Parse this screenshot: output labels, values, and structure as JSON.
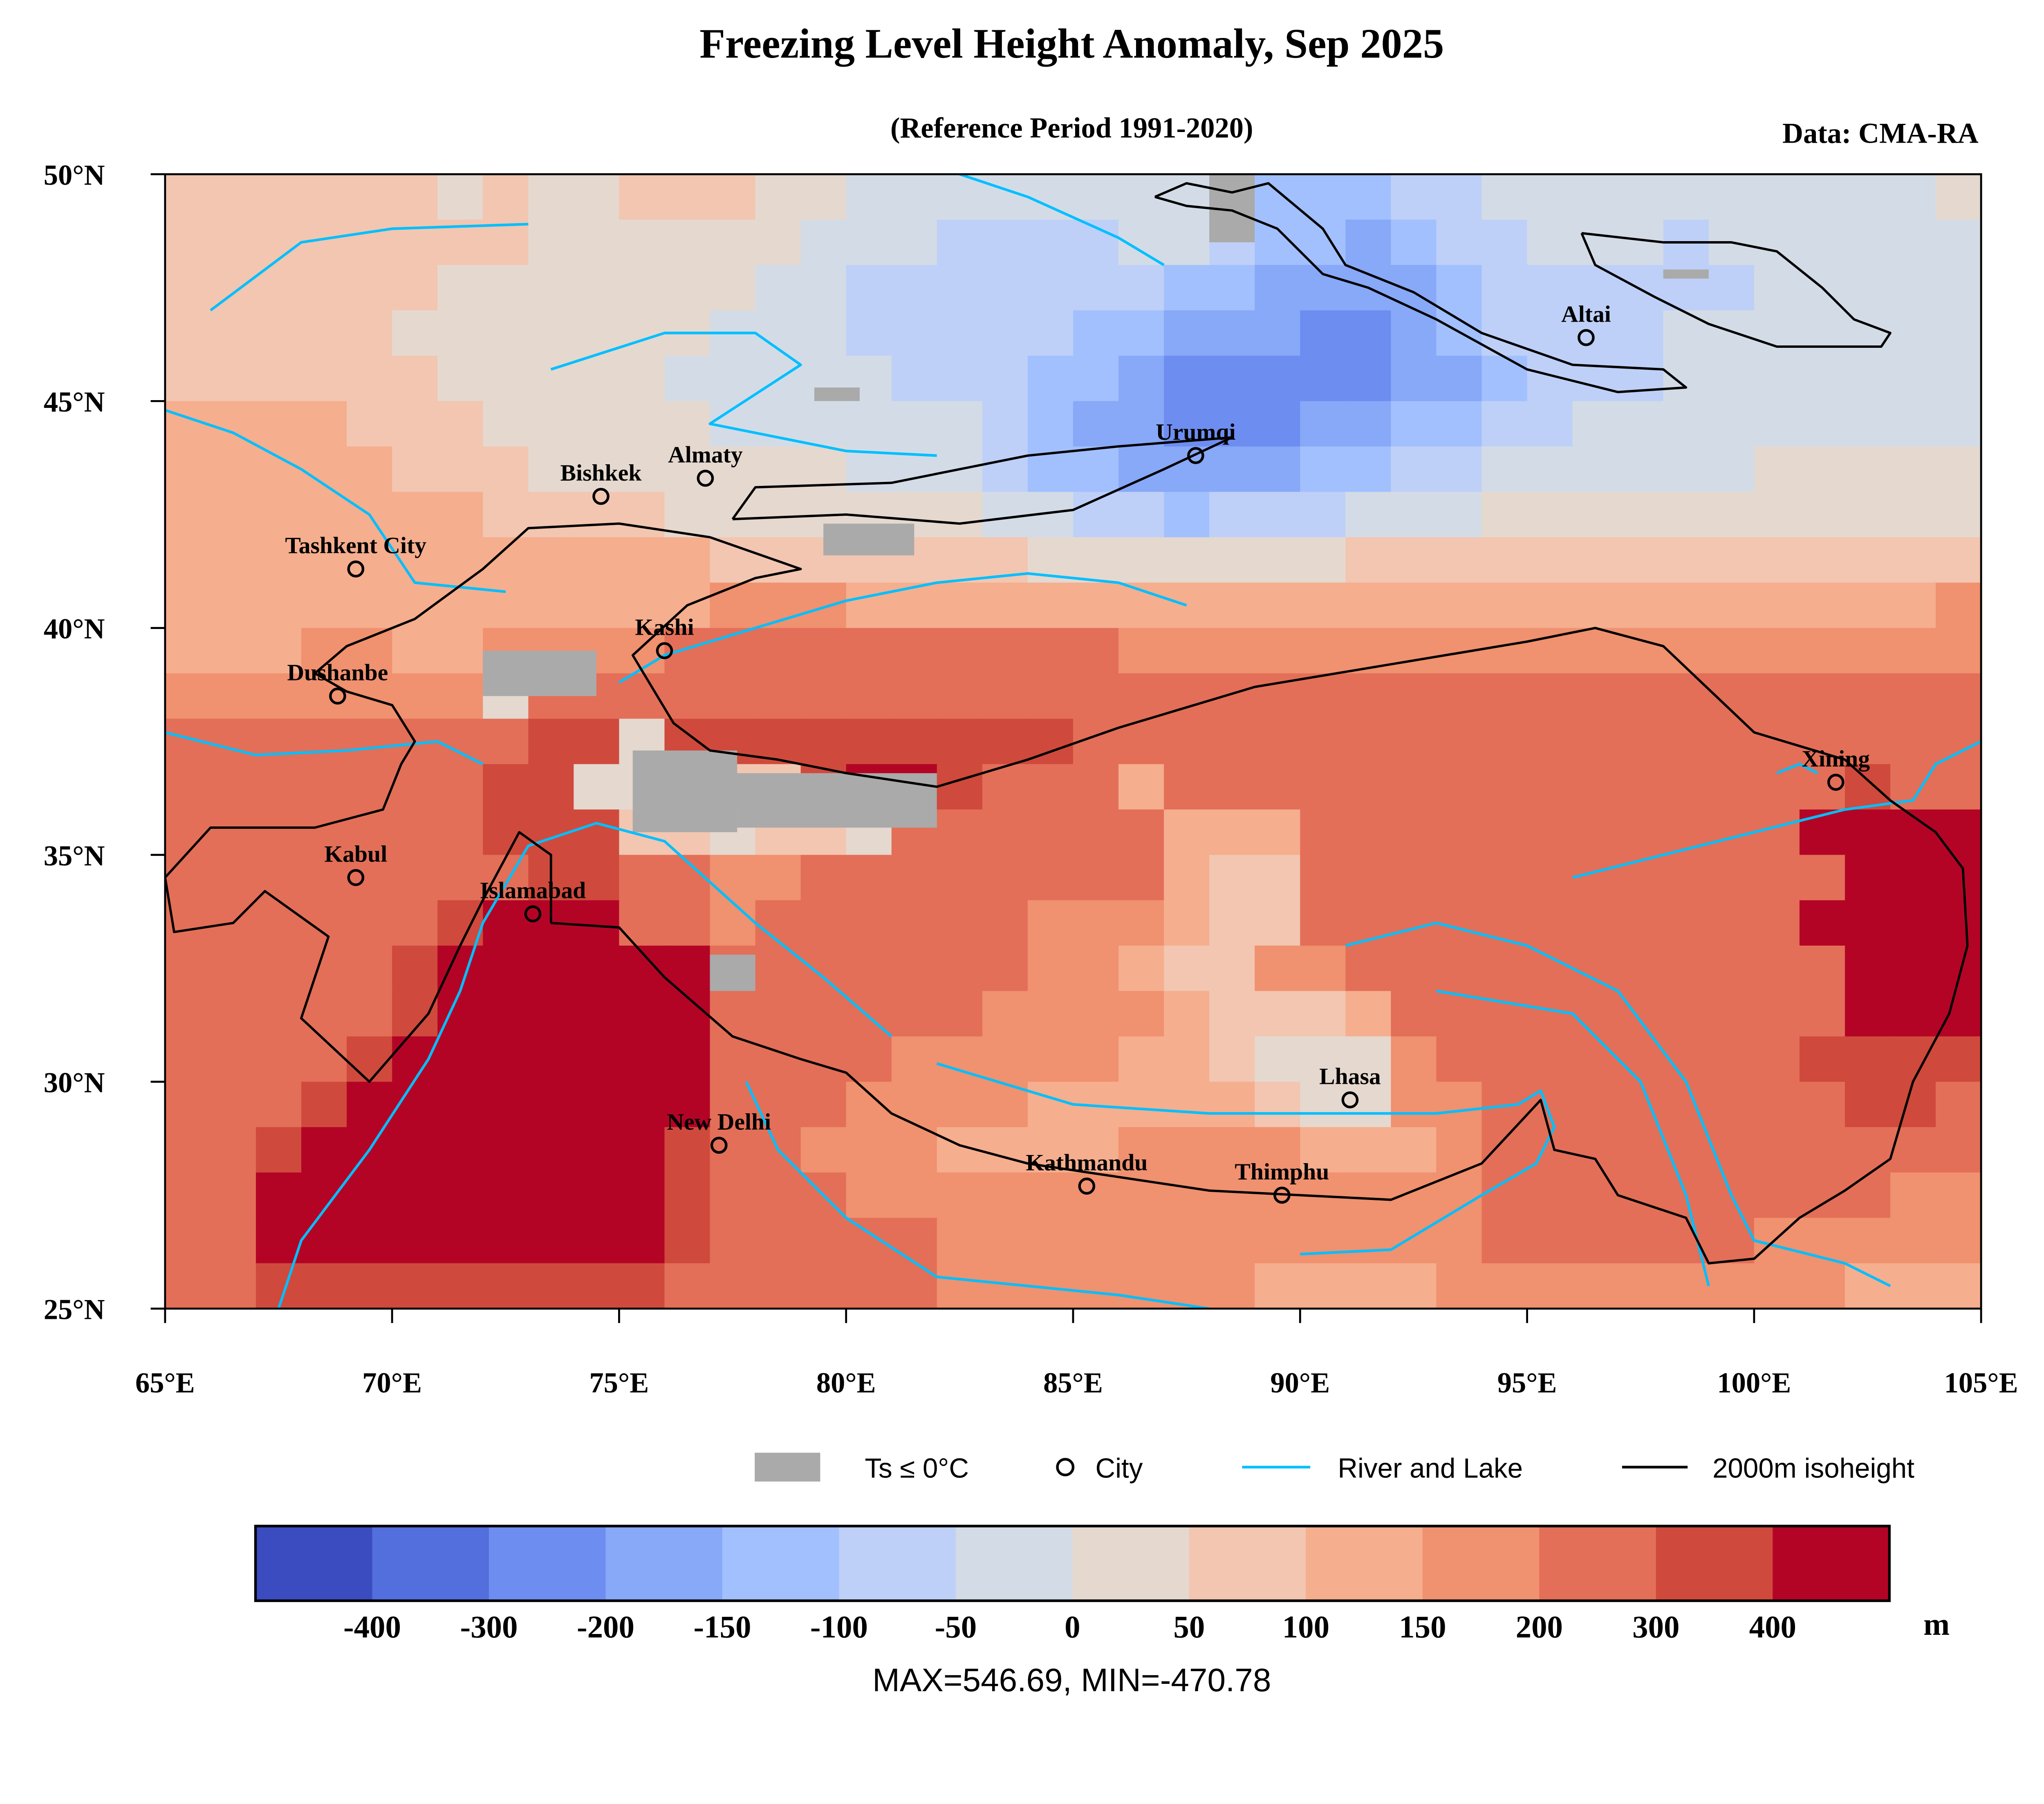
{
  "chart_data": {
    "type": "heatmap",
    "title": "Freezing Level Height Anomaly, Sep 2025",
    "subtitle": "(Reference Period 1991-2020)",
    "source": "Data: CMA-RA",
    "lon_range": [
      65,
      105
    ],
    "lat_range": [
      25,
      50
    ],
    "x_ticks": [
      "65°E",
      "70°E",
      "75°E",
      "80°E",
      "85°E",
      "90°E",
      "95°E",
      "100°E",
      "105°E"
    ],
    "x_tick_values": [
      65,
      70,
      75,
      80,
      85,
      90,
      95,
      100,
      105
    ],
    "y_ticks": [
      "50°N",
      "45°N",
      "40°N",
      "35°N",
      "30°N",
      "25°N"
    ],
    "y_tick_values": [
      50,
      45,
      40,
      35,
      30,
      25
    ],
    "colorbar": {
      "labels": [
        "-400",
        "-300",
        "-200",
        "-150",
        "-100",
        "-50",
        "0",
        "50",
        "100",
        "150",
        "200",
        "300",
        "400"
      ],
      "colors": [
        "#3b4cc0",
        "#536edd",
        "#6d8ef0",
        "#88a8f8",
        "#a2c0fd",
        "#bed0f7",
        "#d3dce6",
        "#e5d8cf",
        "#f2c6b1",
        "#f5ae8e",
        "#f0916f",
        "#e36f58",
        "#cf4a3c",
        "#b40426"
      ],
      "unit": "m"
    },
    "stats": "MAX=546.69, MIN=-470.78",
    "grid_note_code": "0-9,a-d index into colorbar.colors; rows from 50N southward at 1° steps, cols from 65E eastward at 1° steps",
    "grid": [
      "8888887877888776666666654445566666666667",
      "8888888877777766655556654434556665666666",
      "8888887777777665555555443333455555566666",
      "8888877777776665555544333223455556666666",
      "8888887777766666555443222223345556666666",
      "9999888777776666665433222334455666666666",
      "9999988877777776665443333445566666677777",
      "9999999888877777776655455566677777777777",
      "9999999999998888888777777788888888888888",
      "999999999999aaa999999999999999999999999a",
      "999aa99aaaabbbbbbbbbbaaaaaaaaaaaaaaaaaaa",
      "aaaaaaa7bbbbbbbbbbbbbbbbbbbbbbbbbbbbbbbb",
      "bbbbbbbbcc7cccccccccbbbbbbbbbbbbbbbbbbbb",
      "bbbbbbbcc77888cddcbbb9bbbbbbbbbbbbbbbcbb",
      "bbbbbbbccc887887bbbbbb999bbbbbbbbbbbdddd",
      "bbbbbbbbccbbaabbbbbbbb988bbbbbbbbbbbbddd",
      "bbbbbbcdddbbabbbbbbaaa988bbbbbbbbbbbdddd",
      "bbbbbcddddddbbbbbbbaa988aabbbbbbbbbbbddd",
      "bbbbbcddddddbbbbbbaaaa98889bbbbbbbbbbddd",
      "bbbbcdddddddbbbbaaaaa998777abbbbbbbbcccc",
      "bbbcddddddddbbbaaaa99999877aabbbbbbbbccb",
      "bbcddddddddcbbaaa9999aaaa999abbbbbbbbbbb",
      "bbdddddddddcbbbaaaaaaaaaaaaaabbbbbbbbbaa",
      "bbdddddddddcbbbbbaaaaaaaaaaaabbbbbbaaaa",
      "bbcccccccccbbbbbbaaaaaaa9999aaaaaaaaa999"
    ],
    "freezing_patches": [
      {
        "lon": [
          75.3,
          77.6
        ],
        "lat": [
          35.5,
          37.3
        ]
      },
      {
        "lon": [
          77.6,
          82.0
        ],
        "lat": [
          35.6,
          36.8
        ]
      },
      {
        "lon": [
          79.5,
          81.5
        ],
        "lat": [
          41.6,
          42.3
        ]
      },
      {
        "lon": [
          88.0,
          89.0
        ],
        "lat": [
          48.5,
          50.0
        ]
      },
      {
        "lon": [
          72.0,
          74.5
        ],
        "lat": [
          38.5,
          39.5
        ]
      },
      {
        "lon": [
          77.0,
          78.0
        ],
        "lat": [
          32.0,
          32.8
        ]
      },
      {
        "lon": [
          79.3,
          80.3
        ],
        "lat": [
          45.0,
          45.3
        ]
      },
      {
        "lon": [
          98.0,
          99.0
        ],
        "lat": [
          47.7,
          47.9
        ]
      }
    ],
    "cities": [
      {
        "name": "Altai",
        "lon": 96.3,
        "lat": 46.4
      },
      {
        "name": "Urumqi",
        "lon": 87.7,
        "lat": 43.8
      },
      {
        "name": "Almaty",
        "lon": 76.9,
        "lat": 43.3
      },
      {
        "name": "Bishkek",
        "lon": 74.6,
        "lat": 42.9
      },
      {
        "name": "Tashkent City",
        "lon": 69.2,
        "lat": 41.3
      },
      {
        "name": "Kashi",
        "lon": 76.0,
        "lat": 39.5
      },
      {
        "name": "Dushanbe",
        "lon": 68.8,
        "lat": 38.5
      },
      {
        "name": "Xining",
        "lon": 101.8,
        "lat": 36.6
      },
      {
        "name": "Kabul",
        "lon": 69.2,
        "lat": 34.5
      },
      {
        "name": "Islamabad",
        "lon": 73.1,
        "lat": 33.7
      },
      {
        "name": "Lhasa",
        "lon": 91.1,
        "lat": 29.6
      },
      {
        "name": "New Delhi",
        "lon": 77.2,
        "lat": 28.6
      },
      {
        "name": "Kathmandu",
        "lon": 85.3,
        "lat": 27.7
      },
      {
        "name": "Thimphu",
        "lon": 89.6,
        "lat": 27.5
      }
    ],
    "isoheight_2000m": [
      [
        [
          73.5,
          33.5
        ],
        [
          75,
          33.4
        ],
        [
          76,
          32.3
        ],
        [
          77.5,
          31
        ],
        [
          79,
          30.5
        ],
        [
          80,
          30.2
        ],
        [
          81,
          29.3
        ],
        [
          82.5,
          28.6
        ],
        [
          84,
          28.2
        ],
        [
          86,
          27.9
        ],
        [
          88,
          27.6
        ],
        [
          90,
          27.5
        ],
        [
          92,
          27.4
        ],
        [
          94,
          28.2
        ],
        [
          95.3,
          29.6
        ],
        [
          95.6,
          28.5
        ],
        [
          96.5,
          28.3
        ],
        [
          97,
          27.5
        ],
        [
          98.5,
          27
        ],
        [
          99,
          26
        ],
        [
          100,
          26.1
        ],
        [
          101,
          27
        ],
        [
          102,
          27.6
        ],
        [
          103,
          28.3
        ],
        [
          103.5,
          30
        ],
        [
          104.3,
          31.5
        ],
        [
          104.7,
          33
        ],
        [
          104.6,
          34.7
        ],
        [
          104,
          35.5
        ],
        [
          103,
          36.2
        ],
        [
          102,
          37.1
        ],
        [
          100,
          37.7
        ],
        [
          98,
          39.6
        ],
        [
          96.5,
          40
        ],
        [
          95,
          39.7
        ],
        [
          92,
          39.2
        ],
        [
          89,
          38.7
        ],
        [
          86,
          37.8
        ],
        [
          84,
          37.1
        ],
        [
          82,
          36.5
        ],
        [
          80,
          36.8
        ],
        [
          78.5,
          37.1
        ],
        [
          77,
          37.3
        ],
        [
          76.2,
          37.9
        ],
        [
          75.3,
          39.4
        ],
        [
          76.5,
          40.5
        ],
        [
          78,
          41.1
        ],
        [
          79,
          41.3
        ],
        [
          77,
          42
        ],
        [
          75,
          42.3
        ],
        [
          73,
          42.2
        ],
        [
          72,
          41.3
        ],
        [
          70.5,
          40.2
        ],
        [
          69,
          39.6
        ],
        [
          68.3,
          39
        ],
        [
          69,
          38.6
        ],
        [
          70,
          38.3
        ],
        [
          70.5,
          37.5
        ],
        [
          70.2,
          37
        ],
        [
          69.8,
          36
        ],
        [
          68.3,
          35.6
        ],
        [
          66,
          35.6
        ],
        [
          65,
          34.5
        ],
        [
          65.2,
          33.3
        ],
        [
          66.5,
          33.5
        ],
        [
          67.2,
          34.2
        ],
        [
          68.6,
          33.2
        ],
        [
          68,
          31.4
        ],
        [
          69.5,
          30
        ],
        [
          70.8,
          31.5
        ],
        [
          71.5,
          33
        ],
        [
          72,
          34
        ],
        [
          72.8,
          35.5
        ],
        [
          73.5,
          35
        ],
        [
          73.5,
          33.5
        ]
      ],
      [
        [
          77.5,
          42.4
        ],
        [
          80,
          42.5
        ],
        [
          82.5,
          42.3
        ],
        [
          85,
          42.6
        ],
        [
          87,
          43.5
        ],
        [
          88.5,
          44.2
        ],
        [
          86,
          44
        ],
        [
          84,
          43.8
        ],
        [
          81,
          43.2
        ],
        [
          78,
          43.1
        ],
        [
          77.5,
          42.4
        ]
      ],
      [
        [
          86.8,
          49.5
        ],
        [
          87.5,
          49.8
        ],
        [
          88.5,
          49.6
        ],
        [
          89.3,
          49.8
        ],
        [
          90.5,
          48.8
        ],
        [
          91,
          48
        ],
        [
          92.5,
          47.4
        ],
        [
          94,
          46.5
        ],
        [
          96,
          45.8
        ],
        [
          98,
          45.7
        ],
        [
          98.5,
          45.3
        ],
        [
          97,
          45.2
        ],
        [
          95,
          45.7
        ],
        [
          93,
          46.8
        ],
        [
          91.5,
          47.5
        ],
        [
          90.5,
          47.8
        ],
        [
          89.5,
          48.8
        ],
        [
          88.5,
          49.2
        ],
        [
          87.5,
          49.3
        ],
        [
          86.8,
          49.5
        ]
      ],
      [
        [
          96.2,
          48.7
        ],
        [
          98,
          48.5
        ],
        [
          99.5,
          48.5
        ],
        [
          100.5,
          48.3
        ],
        [
          101.5,
          47.5
        ],
        [
          102.2,
          46.8
        ],
        [
          103,
          46.5
        ],
        [
          102.8,
          46.2
        ],
        [
          100.5,
          46.2
        ],
        [
          99,
          46.7
        ],
        [
          97.8,
          47.3
        ],
        [
          96.5,
          48
        ],
        [
          96.2,
          48.7
        ]
      ]
    ],
    "rivers": [
      [
        [
          67.5,
          25
        ],
        [
          68,
          26.5
        ],
        [
          69.5,
          28.5
        ],
        [
          70.8,
          30.5
        ],
        [
          71.5,
          32
        ],
        [
          72,
          33.5
        ],
        [
          73,
          35.2
        ],
        [
          74.5,
          35.7
        ],
        [
          76,
          35.3
        ],
        [
          78,
          33.5
        ],
        [
          79.5,
          32.3
        ],
        [
          81,
          31
        ]
      ],
      [
        [
          77.8,
          30
        ],
        [
          78.5,
          28.5
        ],
        [
          80,
          27
        ],
        [
          82,
          25.7
        ],
        [
          84,
          25.5
        ],
        [
          86,
          25.3
        ],
        [
          88,
          25
        ]
      ],
      [
        [
          82,
          30.4
        ],
        [
          85,
          29.5
        ],
        [
          88,
          29.3
        ],
        [
          91,
          29.3
        ],
        [
          93,
          29.3
        ],
        [
          94.8,
          29.5
        ],
        [
          95.3,
          29.8
        ],
        [
          95.6,
          29
        ],
        [
          95.2,
          28.2
        ],
        [
          94,
          27.5
        ],
        [
          92,
          26.3
        ],
        [
          90,
          26.2
        ]
      ],
      [
        [
          75,
          38.8
        ],
        [
          76,
          39.4
        ],
        [
          78,
          40
        ],
        [
          80,
          40.6
        ],
        [
          82,
          41
        ],
        [
          84,
          41.2
        ],
        [
          86,
          41
        ],
        [
          87.5,
          40.5
        ]
      ],
      [
        [
          65,
          37.7
        ],
        [
          67,
          37.2
        ],
        [
          69,
          37.3
        ],
        [
          71,
          37.5
        ],
        [
          72,
          37
        ]
      ],
      [
        [
          65,
          44.8
        ],
        [
          66.5,
          44.3
        ],
        [
          68,
          43.5
        ],
        [
          69.5,
          42.5
        ],
        [
          70.5,
          41
        ],
        [
          72.5,
          40.8
        ]
      ],
      [
        [
          73.5,
          45.7
        ],
        [
          76,
          46.5
        ],
        [
          78,
          46.5
        ],
        [
          79,
          45.8
        ],
        [
          77,
          44.5
        ],
        [
          80,
          43.9
        ],
        [
          82,
          43.8
        ]
      ],
      [
        [
          87,
          48
        ],
        [
          86,
          48.6
        ],
        [
          84,
          49.5
        ],
        [
          82.5,
          50
        ]
      ],
      [
        [
          66,
          47
        ],
        [
          68,
          48.5
        ],
        [
          70,
          48.8
        ],
        [
          73,
          48.9
        ]
      ],
      [
        [
          96,
          34.5
        ],
        [
          98,
          35
        ],
        [
          100,
          35.5
        ],
        [
          102,
          36
        ],
        [
          103.5,
          36.2
        ],
        [
          104,
          37
        ],
        [
          105,
          37.5
        ]
      ],
      [
        [
          91,
          33
        ],
        [
          93,
          33.5
        ],
        [
          95,
          33
        ],
        [
          97,
          32
        ],
        [
          98.5,
          30
        ],
        [
          99.5,
          27.5
        ],
        [
          100,
          26.5
        ],
        [
          102,
          26
        ],
        [
          103,
          25.5
        ]
      ],
      [
        [
          93,
          32
        ],
        [
          96,
          31.5
        ],
        [
          97.5,
          30
        ],
        [
          98.5,
          27.5
        ],
        [
          99,
          25.5
        ]
      ],
      [
        [
          100.5,
          36.8
        ],
        [
          101,
          37
        ],
        [
          101.4,
          36.8
        ]
      ]
    ]
  },
  "legend": {
    "freezing": "Ts ≤ 0°C",
    "city": "City",
    "river": "River and Lake",
    "isoheight": "2000m isoheight",
    "freezing_color": "#aaaaaa",
    "river_color": "#00bfff",
    "isoheight_color": "#000000"
  }
}
